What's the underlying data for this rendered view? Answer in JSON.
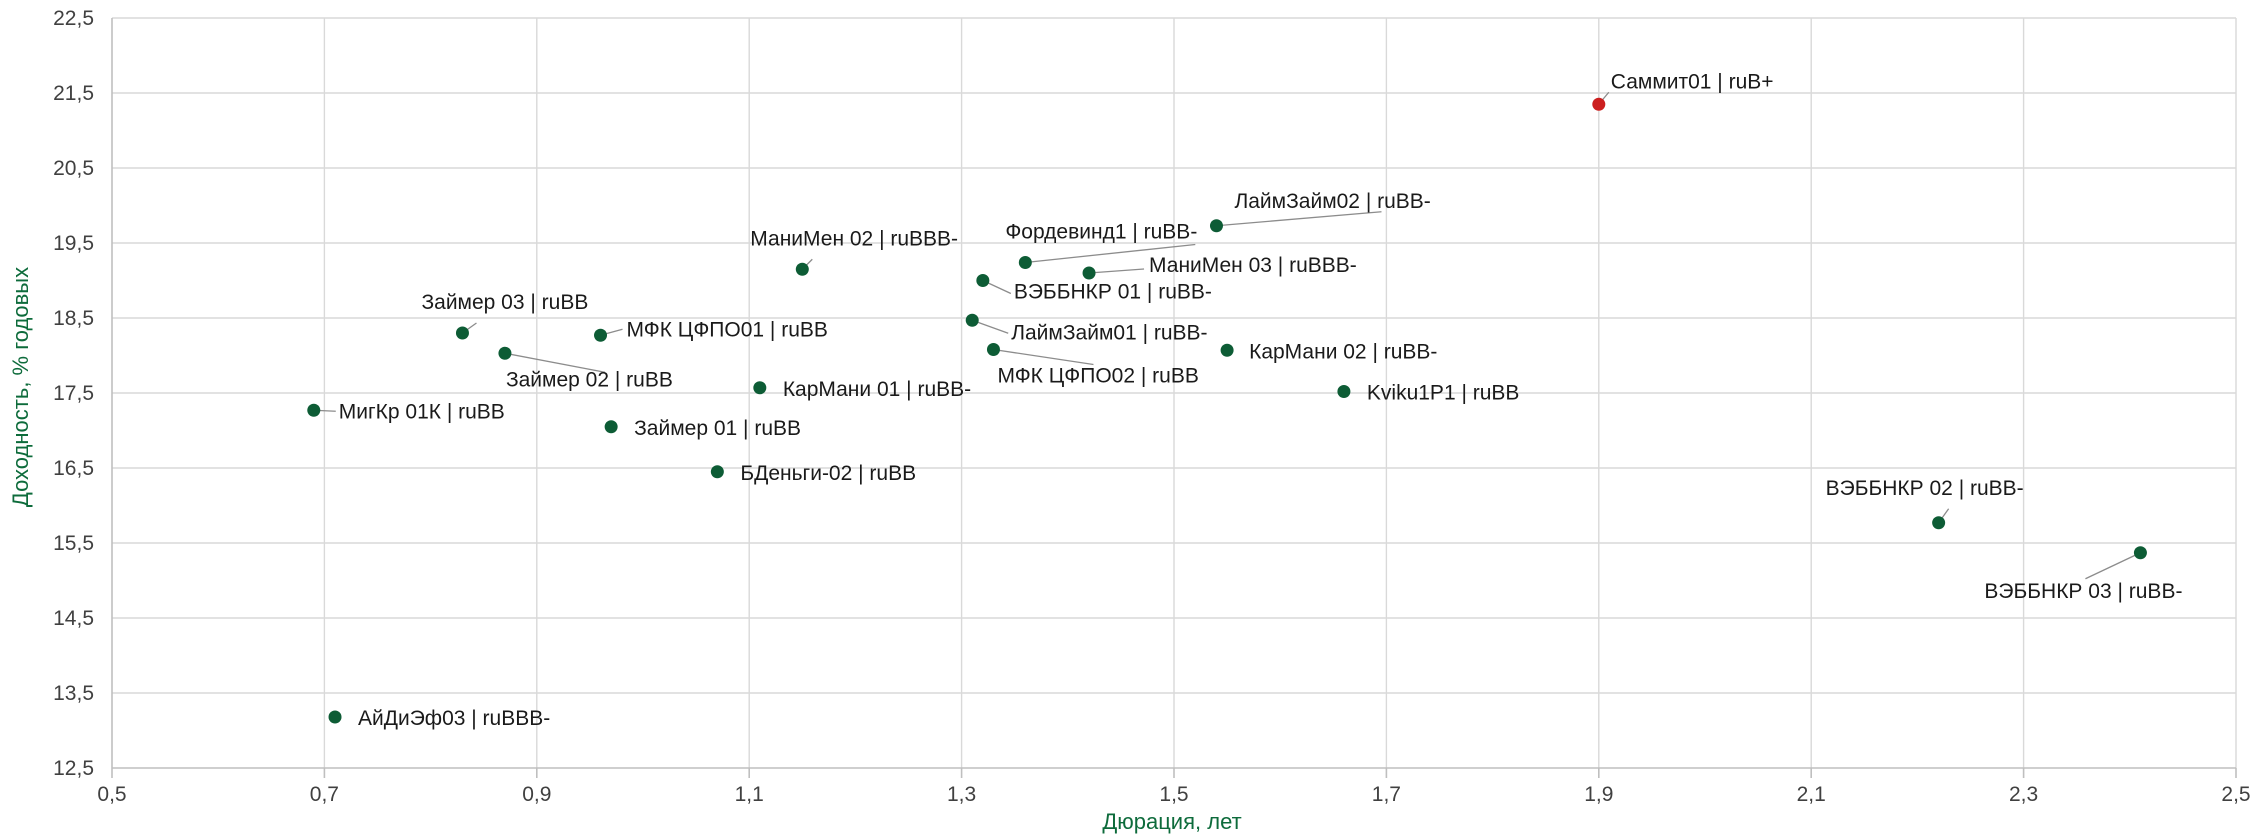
{
  "chart_data": {
    "type": "scatter",
    "xlabel": "Дюрация, лет",
    "ylabel": "Доходность, % годовых",
    "xlim": [
      0.5,
      2.5
    ],
    "ylim": [
      12.5,
      22.5
    ],
    "x_ticks": [
      "0,5",
      "0,7",
      "0,9",
      "1,1",
      "1,3",
      "1,5",
      "1,7",
      "1,9",
      "2,1",
      "2,3",
      "2,5"
    ],
    "y_ticks": [
      "22,5",
      "21,5",
      "20,5",
      "19,5",
      "18,5",
      "17,5",
      "16,5",
      "15,5",
      "14,5",
      "13,5",
      "12,5"
    ],
    "grid": true,
    "colors": {
      "default": "#0d5c35",
      "highlight": "#cc1f1f",
      "axis_title": "#0d6b3b"
    },
    "points": [
      {
        "label": "Саммит01  | ruB+",
        "x": 1.9,
        "y": 21.35,
        "highlight": true
      },
      {
        "label": "ЛаймЗайм02 | ruBB-",
        "x": 1.54,
        "y": 19.73
      },
      {
        "label": "Фордевинд1 | ruBB-",
        "x": 1.36,
        "y": 19.24
      },
      {
        "label": "МаниМен 02 | ruBBB-",
        "x": 1.15,
        "y": 19.15
      },
      {
        "label": "МаниМен 03 | ruBBB-",
        "x": 1.42,
        "y": 19.1
      },
      {
        "label": "ВЭББНКР 01 | ruBB-",
        "x": 1.32,
        "y": 19.0
      },
      {
        "label": "ЛаймЗайм01 | ruBB-",
        "x": 1.31,
        "y": 18.47
      },
      {
        "label": "Займер 03 | ruBB",
        "x": 0.83,
        "y": 18.3
      },
      {
        "label": "МФК ЦФПО01 | ruBB",
        "x": 0.96,
        "y": 18.27
      },
      {
        "label": "МФК ЦФПО02 | ruBB",
        "x": 1.33,
        "y": 18.08
      },
      {
        "label": "КарМани 02 | ruBB-",
        "x": 1.55,
        "y": 18.07
      },
      {
        "label": "Займер 02 | ruBB",
        "x": 0.87,
        "y": 18.03
      },
      {
        "label": "КарМани 01 | ruBB-",
        "x": 1.11,
        "y": 17.57
      },
      {
        "label": "Kviku1P1 | ruBB",
        "x": 1.66,
        "y": 17.52
      },
      {
        "label": "МигКр 01К | ruBB",
        "x": 0.69,
        "y": 17.27
      },
      {
        "label": "Займер 01 | ruBB",
        "x": 0.97,
        "y": 17.05
      },
      {
        "label": "БДеньги-02 | ruBB",
        "x": 1.07,
        "y": 16.45
      },
      {
        "label": "ВЭББНКР 02 | ruBB-",
        "x": 2.22,
        "y": 15.77
      },
      {
        "label": "ВЭББНКР 03 | ruBB-",
        "x": 2.41,
        "y": 15.37
      },
      {
        "label": "АйДиЭф03 | ruBBB-",
        "x": 0.71,
        "y": 13.18
      }
    ]
  }
}
